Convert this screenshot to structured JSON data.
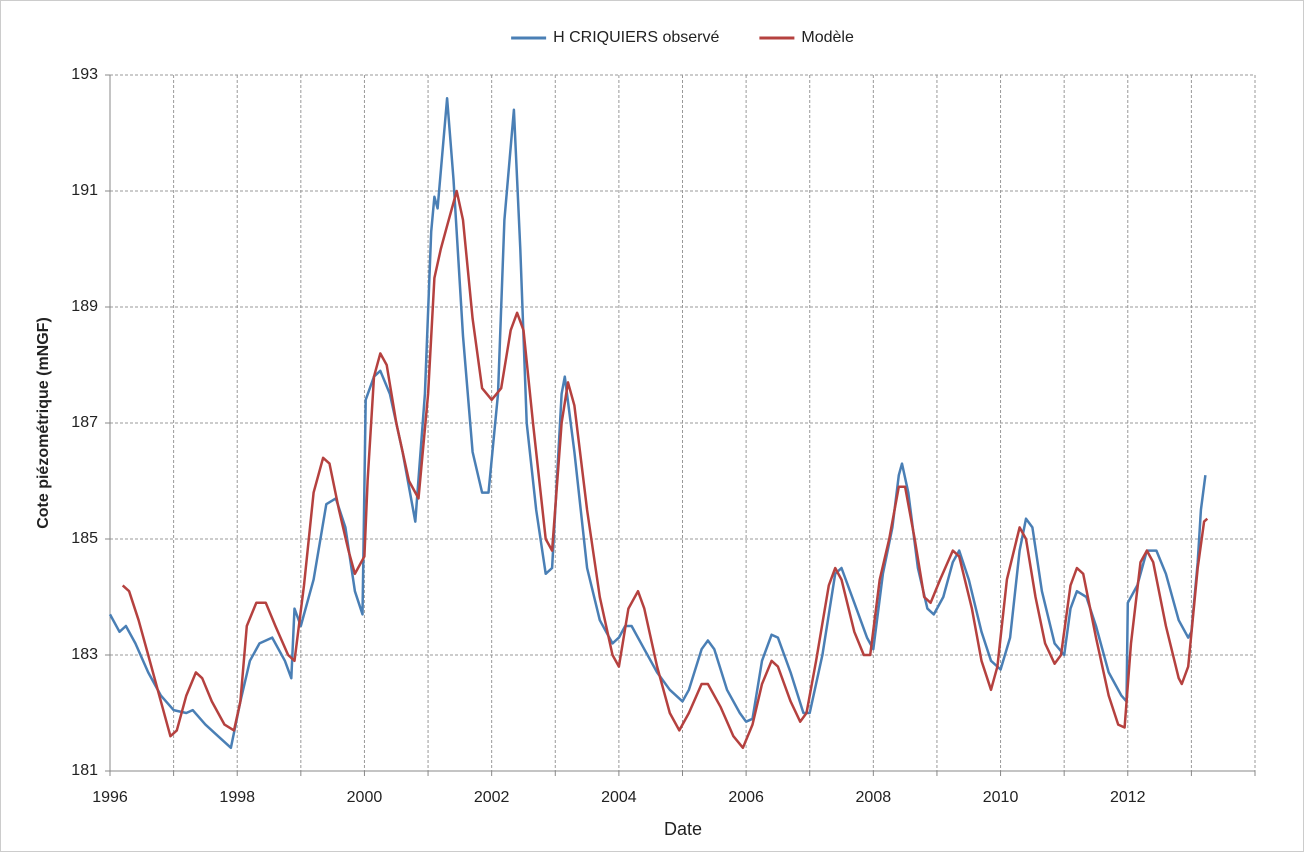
{
  "chart_data": {
    "type": "line",
    "x_label": "Date",
    "y_label": "Cote piézométrique (mNGF)",
    "xlim": [
      1996,
      2014
    ],
    "xticks": [
      1996,
      1998,
      2000,
      2002,
      2004,
      2006,
      2008,
      2010,
      2012
    ],
    "x_minor_ticks": [
      1997,
      1999,
      2001,
      2003,
      2005,
      2007,
      2009,
      2011,
      2013,
      2014
    ],
    "ylim": [
      181,
      193
    ],
    "yticks": [
      181,
      183,
      185,
      187,
      189,
      191,
      193
    ],
    "grid": true,
    "legend": "top",
    "series": [
      {
        "name": "H CRIQUIERS observé",
        "color": "#4a7fb5",
        "x": [
          1996.0,
          1996.15,
          1996.25,
          1996.4,
          1996.6,
          1996.8,
          1997.0,
          1997.2,
          1997.3,
          1997.5,
          1997.7,
          1997.9,
          1998.05,
          1998.2,
          1998.35,
          1998.55,
          1998.75,
          1998.85,
          1998.9,
          1999.0,
          1999.2,
          1999.4,
          1999.55,
          1999.7,
          1999.85,
          1999.97,
          2000.02,
          2000.15,
          2000.25,
          2000.4,
          2000.6,
          2000.8,
          2000.95,
          2001.05,
          2001.1,
          2001.15,
          2001.3,
          2001.4,
          2001.55,
          2001.7,
          2001.85,
          2001.95,
          2002.1,
          2002.2,
          2002.35,
          2002.45,
          2002.55,
          2002.7,
          2002.85,
          2002.95,
          2003.1,
          2003.15,
          2003.3,
          2003.5,
          2003.7,
          2003.9,
          2004.0,
          2004.1,
          2004.2,
          2004.4,
          2004.6,
          2004.8,
          2005.0,
          2005.1,
          2005.3,
          2005.4,
          2005.5,
          2005.7,
          2005.9,
          2006.0,
          2006.1,
          2006.25,
          2006.4,
          2006.5,
          2006.7,
          2006.9,
          2007.0,
          2007.2,
          2007.4,
          2007.5,
          2007.7,
          2007.9,
          2008.0,
          2008.15,
          2008.3,
          2008.4,
          2008.45,
          2008.55,
          2008.7,
          2008.85,
          2008.95,
          2009.1,
          2009.25,
          2009.35,
          2009.5,
          2009.7,
          2009.85,
          2010.0,
          2010.15,
          2010.3,
          2010.4,
          2010.5,
          2010.65,
          2010.85,
          2011.0,
          2011.1,
          2011.2,
          2011.35,
          2011.5,
          2011.7,
          2011.9,
          2011.98,
          2012.0,
          2012.15,
          2012.3,
          2012.45,
          2012.6,
          2012.8,
          2012.95,
          2013.0,
          2013.1,
          2013.15,
          2013.22
        ],
        "values": [
          183.7,
          183.4,
          183.5,
          183.2,
          182.7,
          182.3,
          182.05,
          182.0,
          182.05,
          181.8,
          181.6,
          181.4,
          182.2,
          182.9,
          183.2,
          183.3,
          182.9,
          182.6,
          183.8,
          183.5,
          184.3,
          185.6,
          185.7,
          185.2,
          184.1,
          183.7,
          187.4,
          187.8,
          187.9,
          187.5,
          186.5,
          185.3,
          187.5,
          190.3,
          190.9,
          190.7,
          192.6,
          191.2,
          188.5,
          186.5,
          185.8,
          185.8,
          187.5,
          190.5,
          192.4,
          190.0,
          187.0,
          185.5,
          184.4,
          184.5,
          187.5,
          187.8,
          186.5,
          184.5,
          183.6,
          183.2,
          183.3,
          183.5,
          183.5,
          183.1,
          182.7,
          182.4,
          182.2,
          182.4,
          183.1,
          183.25,
          183.1,
          182.4,
          182.0,
          181.85,
          181.9,
          182.9,
          183.35,
          183.3,
          182.7,
          182.0,
          182.0,
          183.0,
          184.4,
          184.5,
          183.9,
          183.3,
          183.1,
          184.4,
          185.2,
          186.1,
          186.3,
          185.8,
          184.5,
          183.8,
          183.7,
          184.0,
          184.6,
          184.8,
          184.3,
          183.4,
          182.9,
          182.75,
          183.3,
          184.8,
          185.35,
          185.2,
          184.1,
          183.2,
          183.0,
          183.8,
          184.1,
          184.0,
          183.5,
          182.7,
          182.3,
          182.2,
          183.9,
          184.2,
          184.8,
          184.8,
          184.4,
          183.6,
          183.3,
          183.4,
          184.6,
          185.5,
          186.1
        ]
      },
      {
        "name": "Modèle",
        "color": "#b5413f",
        "x": [
          1996.2,
          1996.3,
          1996.45,
          1996.6,
          1996.8,
          1996.95,
          1997.05,
          1997.2,
          1997.35,
          1997.45,
          1997.6,
          1997.8,
          1997.95,
          1998.05,
          1998.15,
          1998.3,
          1998.45,
          1998.6,
          1998.8,
          1998.9,
          1999.05,
          1999.2,
          1999.35,
          1999.45,
          1999.6,
          1999.75,
          1999.85,
          2000.0,
          2000.05,
          2000.15,
          2000.25,
          2000.35,
          2000.5,
          2000.7,
          2000.85,
          2001.0,
          2001.1,
          2001.2,
          2001.3,
          2001.45,
          2001.55,
          2001.7,
          2001.85,
          2002.0,
          2002.15,
          2002.3,
          2002.4,
          2002.5,
          2002.65,
          2002.85,
          2002.95,
          2003.1,
          2003.2,
          2003.3,
          2003.5,
          2003.7,
          2003.9,
          2004.0,
          2004.15,
          2004.3,
          2004.4,
          2004.6,
          2004.8,
          2004.95,
          2005.1,
          2005.3,
          2005.4,
          2005.6,
          2005.8,
          2005.95,
          2006.1,
          2006.25,
          2006.4,
          2006.5,
          2006.7,
          2006.85,
          2006.95,
          2007.1,
          2007.3,
          2007.4,
          2007.5,
          2007.7,
          2007.85,
          2007.95,
          2008.1,
          2008.25,
          2008.4,
          2008.5,
          2008.65,
          2008.8,
          2008.9,
          2009.05,
          2009.25,
          2009.35,
          2009.55,
          2009.7,
          2009.85,
          2009.95,
          2010.1,
          2010.3,
          2010.4,
          2010.55,
          2010.7,
          2010.85,
          2010.95,
          2011.1,
          2011.2,
          2011.3,
          2011.5,
          2011.7,
          2011.85,
          2011.95,
          2012.05,
          2012.2,
          2012.3,
          2012.4,
          2012.6,
          2012.8,
          2012.85,
          2012.95,
          2013.1,
          2013.2,
          2013.25
        ],
        "values": [
          184.2,
          184.1,
          183.6,
          183.0,
          182.2,
          181.6,
          181.7,
          182.3,
          182.7,
          182.6,
          182.2,
          181.8,
          181.7,
          182.2,
          183.5,
          183.9,
          183.9,
          183.5,
          183.0,
          182.9,
          184.2,
          185.8,
          186.4,
          186.3,
          185.5,
          184.8,
          184.4,
          184.7,
          186.0,
          187.8,
          188.2,
          188.0,
          187.0,
          186.0,
          185.7,
          187.5,
          189.5,
          190.0,
          190.4,
          191.0,
          190.5,
          188.8,
          187.6,
          187.4,
          187.6,
          188.6,
          188.9,
          188.6,
          187.0,
          185.0,
          184.8,
          187.0,
          187.7,
          187.3,
          185.5,
          184.0,
          183.0,
          182.8,
          183.8,
          184.1,
          183.8,
          182.8,
          182.0,
          181.7,
          182.0,
          182.5,
          182.5,
          182.1,
          181.6,
          181.4,
          181.8,
          182.5,
          182.9,
          182.8,
          182.2,
          181.85,
          182.0,
          182.9,
          184.2,
          184.5,
          184.3,
          183.4,
          183.0,
          183.0,
          184.3,
          185.0,
          185.9,
          185.9,
          185.0,
          184.0,
          183.9,
          184.3,
          184.8,
          184.7,
          183.8,
          182.9,
          182.4,
          182.8,
          184.3,
          185.2,
          185.0,
          184.0,
          183.2,
          182.85,
          183.0,
          184.2,
          184.5,
          184.4,
          183.3,
          182.3,
          181.8,
          181.75,
          183.2,
          184.6,
          184.8,
          184.6,
          183.5,
          182.6,
          182.5,
          182.8,
          184.5,
          185.3,
          185.35
        ]
      }
    ]
  }
}
